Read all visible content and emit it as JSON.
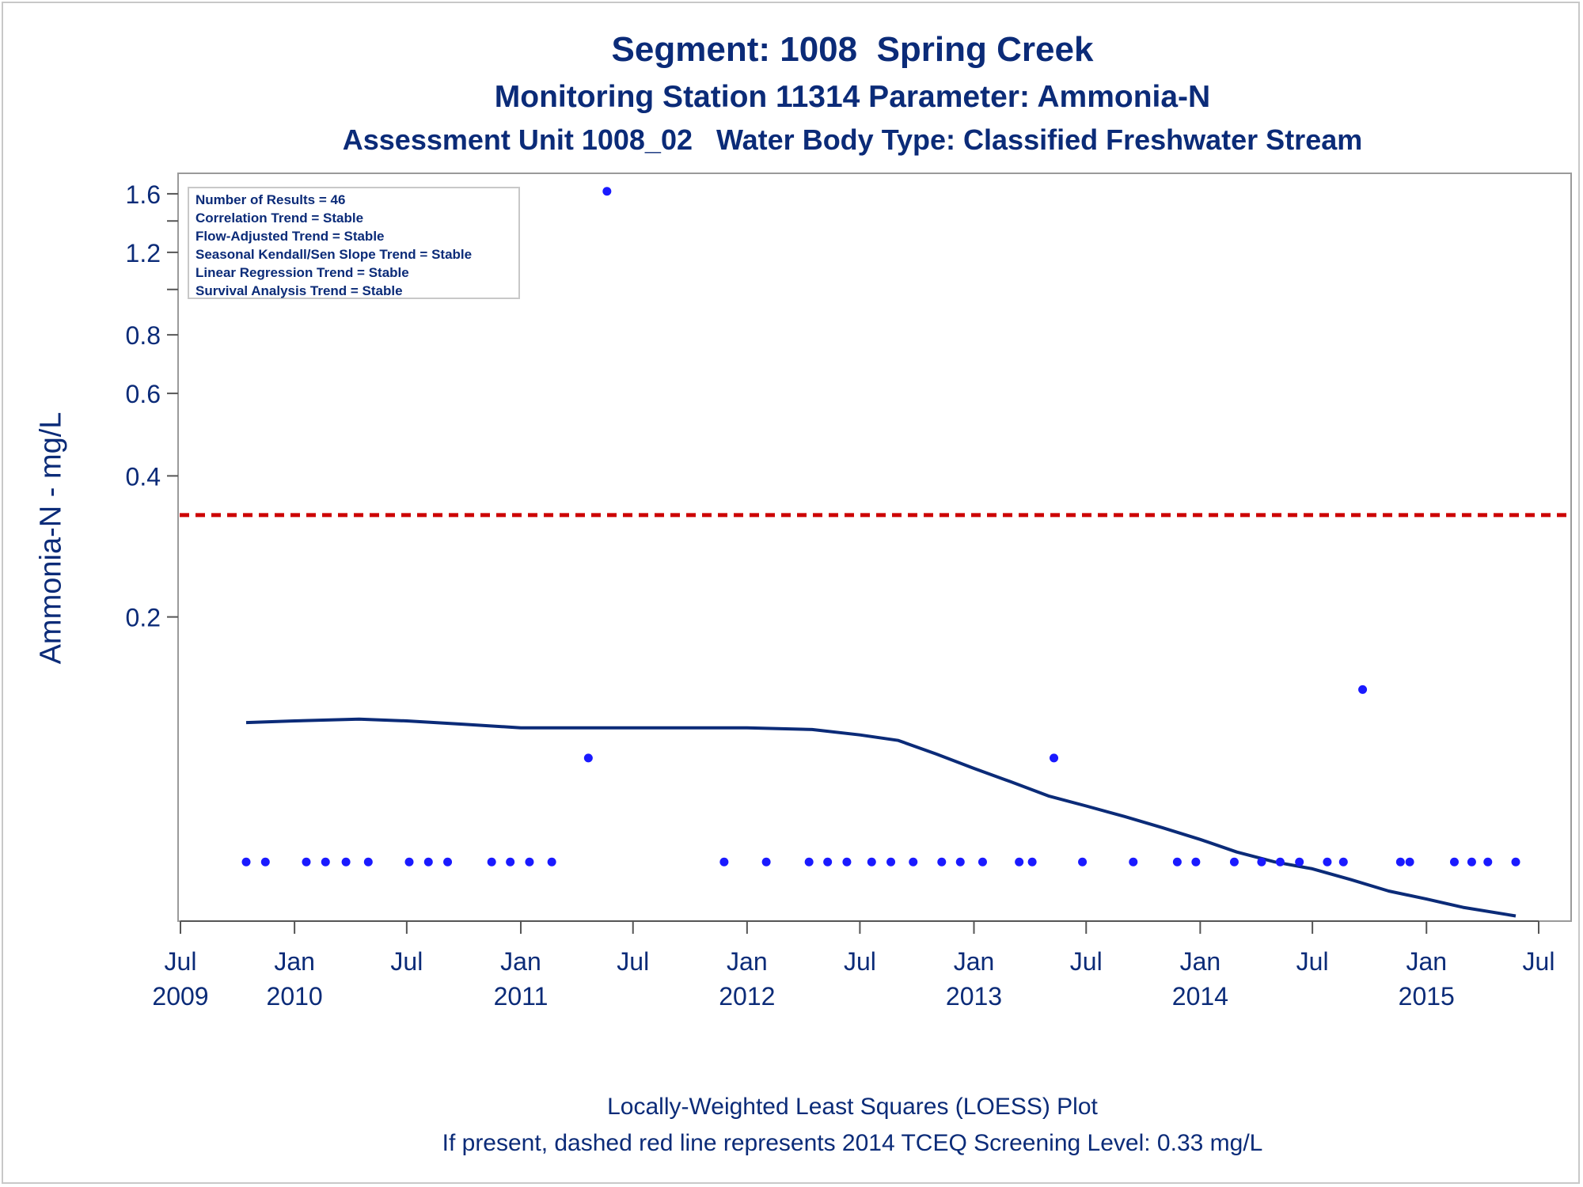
{
  "title": {
    "line1": "Segment: 1008  Spring Creek",
    "line2": "Monitoring Station 11314 Parameter: Ammonia-N",
    "line3": "Assessment Unit 1008_02   Water Body Type: Classified Freshwater Stream"
  },
  "stats": [
    "Number of Results = 46",
    "Correlation Trend = Stable",
    "Flow-Adjusted Trend = Stable",
    "Seasonal Kendall/Sen Slope Trend = Stable",
    "Linear Regression Trend = Stable",
    "Survival Analysis Trend = Stable"
  ],
  "footer": {
    "line1": "Locally-Weighted Least Squares (LOESS) Plot",
    "line2": "If present, dashed red line represents 2014 TCEQ Screening Level: 0.33 mg/L"
  },
  "colors": {
    "text": "#0b2b78",
    "points": "#1a1aff",
    "loess": "#0b2b78",
    "screening": "#cc0000",
    "frame": "#9a9a9a"
  },
  "chart_data": {
    "type": "scatter",
    "ylabel": "Ammonia-N - mg/L",
    "xlabel": "",
    "yscale": "log",
    "xlim": [
      "2009-07-01",
      "2015-07-01"
    ],
    "ylim": [
      0.047,
      1.65
    ],
    "yticks": [
      1.6,
      1.2,
      0.8,
      0.6,
      0.4,
      0.2
    ],
    "yminor": [
      1.4,
      1.0
    ],
    "xticks": [
      {
        "date": "2009-07-01",
        "month": "Jul",
        "year": "2009"
      },
      {
        "date": "2010-01-01",
        "month": "Jan",
        "year": "2010"
      },
      {
        "date": "2010-07-01",
        "month": "Jul",
        "year": ""
      },
      {
        "date": "2011-01-01",
        "month": "Jan",
        "year": "2011"
      },
      {
        "date": "2011-07-01",
        "month": "Jul",
        "year": ""
      },
      {
        "date": "2012-01-01",
        "month": "Jan",
        "year": "2012"
      },
      {
        "date": "2012-07-01",
        "month": "Jul",
        "year": ""
      },
      {
        "date": "2013-01-01",
        "month": "Jan",
        "year": "2013"
      },
      {
        "date": "2013-07-01",
        "month": "Jul",
        "year": ""
      },
      {
        "date": "2014-01-01",
        "month": "Jan",
        "year": "2014"
      },
      {
        "date": "2014-07-01",
        "month": "Jul",
        "year": ""
      },
      {
        "date": "2015-01-01",
        "month": "Jan",
        "year": "2015"
      },
      {
        "date": "2015-07-01",
        "month": "Jul",
        "year": ""
      }
    ],
    "screening_level": 0.33,
    "series": [
      {
        "name": "",
        "kind": "points",
        "points": [
          [
            "2009-10-15",
            0.06
          ],
          [
            "2009-11-15",
            0.06
          ],
          [
            "2010-01-20",
            0.06
          ],
          [
            "2010-02-20",
            0.06
          ],
          [
            "2010-03-25",
            0.06
          ],
          [
            "2010-04-30",
            0.06
          ],
          [
            "2010-07-05",
            0.06
          ],
          [
            "2010-08-05",
            0.06
          ],
          [
            "2010-09-05",
            0.06
          ],
          [
            "2010-11-15",
            0.06
          ],
          [
            "2010-12-15",
            0.06
          ],
          [
            "2011-01-15",
            0.06
          ],
          [
            "2011-02-20",
            0.06
          ],
          [
            "2011-04-20",
            0.1
          ],
          [
            "2011-05-20",
            1.62
          ],
          [
            "2011-11-25",
            0.06
          ],
          [
            "2012-02-01",
            0.06
          ],
          [
            "2012-04-10",
            0.06
          ],
          [
            "2012-05-10",
            0.06
          ],
          [
            "2012-06-10",
            0.06
          ],
          [
            "2012-07-20",
            0.06
          ],
          [
            "2012-08-20",
            0.06
          ],
          [
            "2012-09-25",
            0.06
          ],
          [
            "2012-11-10",
            0.06
          ],
          [
            "2012-12-10",
            0.06
          ],
          [
            "2013-01-15",
            0.06
          ],
          [
            "2013-03-15",
            0.06
          ],
          [
            "2013-04-05",
            0.06
          ],
          [
            "2013-05-10",
            0.1
          ],
          [
            "2013-06-25",
            0.06
          ],
          [
            "2013-09-15",
            0.06
          ],
          [
            "2013-11-25",
            0.06
          ],
          [
            "2013-12-25",
            0.06
          ],
          [
            "2014-02-25",
            0.06
          ],
          [
            "2014-04-10",
            0.06
          ],
          [
            "2014-05-10",
            0.06
          ],
          [
            "2014-06-10",
            0.06
          ],
          [
            "2014-07-25",
            0.06
          ],
          [
            "2014-08-20",
            0.06
          ],
          [
            "2014-09-20",
            0.14
          ],
          [
            "2014-11-20",
            0.06
          ],
          [
            "2014-12-05",
            0.06
          ],
          [
            "2015-02-15",
            0.06
          ],
          [
            "2015-03-15",
            0.06
          ],
          [
            "2015-04-10",
            0.06
          ],
          [
            "2015-05-25",
            0.06
          ]
        ]
      },
      {
        "name": "",
        "kind": "line",
        "points": [
          [
            "2009-10-15",
            0.119
          ],
          [
            "2010-01-01",
            0.12
          ],
          [
            "2010-04-15",
            0.121
          ],
          [
            "2010-07-01",
            0.12
          ],
          [
            "2010-10-01",
            0.118
          ],
          [
            "2011-01-01",
            0.116
          ],
          [
            "2011-07-01",
            0.116
          ],
          [
            "2012-01-01",
            0.116
          ],
          [
            "2012-04-15",
            0.115
          ],
          [
            "2012-07-01",
            0.112
          ],
          [
            "2012-09-01",
            0.109
          ],
          [
            "2012-11-01",
            0.102
          ],
          [
            "2013-01-01",
            0.095
          ],
          [
            "2013-03-01",
            0.089
          ],
          [
            "2013-05-01",
            0.083
          ],
          [
            "2013-07-01",
            0.079
          ],
          [
            "2013-09-01",
            0.075
          ],
          [
            "2013-11-01",
            0.071
          ],
          [
            "2014-01-01",
            0.067
          ],
          [
            "2014-03-01",
            0.063
          ],
          [
            "2014-05-01",
            0.06
          ],
          [
            "2014-07-01",
            0.058
          ],
          [
            "2014-09-01",
            0.055
          ],
          [
            "2014-11-01",
            0.052
          ],
          [
            "2015-01-01",
            0.05
          ],
          [
            "2015-03-01",
            0.048
          ],
          [
            "2015-05-25",
            0.046
          ]
        ]
      }
    ]
  }
}
